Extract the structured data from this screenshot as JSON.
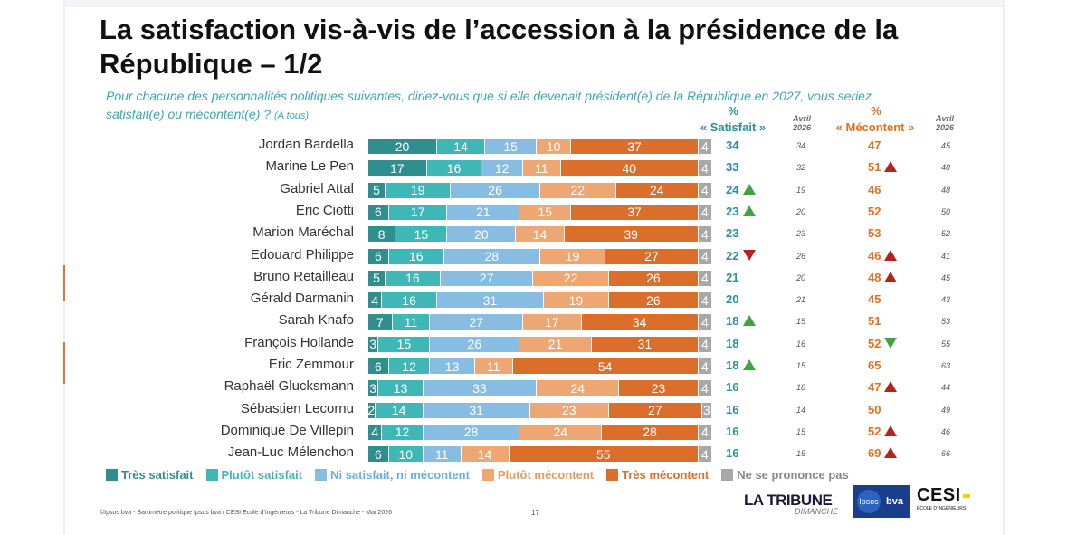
{
  "title": "La satisfaction vis-à-vis de l’accession à la présidence de la République – 1/2",
  "subtitle": "Pour chacune des personnalités politiques suivantes, diriez-vous que si elle devenait président(e) de la République en 2027, vous seriez satisfait(e) ou mécontent(e) ?",
  "subtitle_note": "(A tous)",
  "columns": {
    "pct_sat": "%",
    "satisfait": "« Satisfait »",
    "avril_sat": "Avril\n2026",
    "pct_mec": "%",
    "mecontent": "« Mécontent »",
    "avril_mec": "Avril\n2026"
  },
  "colors": {
    "tres_satisfait": "#2f8f8f",
    "plutot_satisfait": "#3fb7b7",
    "ni_ni": "#87bde3",
    "plutot_mecontent": "#eea672",
    "tres_mecontent": "#dc6e2c",
    "nspp": "#a8a8a8"
  },
  "chart_data": {
    "type": "bar",
    "orientation": "horizontal-stacked",
    "categories": [
      "Jordan Bardella",
      "Marine Le Pen",
      "Gabriel Attal",
      "Eric Ciotti",
      "Marion Maréchal",
      "Edouard Philippe",
      "Bruno Retailleau",
      "Gérald Darmanin",
      "Sarah Knafo",
      "François Hollande",
      "Eric Zemmour",
      "Raphaël Glucksmann",
      "Sébastien Lecornu",
      "Dominique De Villepin",
      "Jean-Luc Mélenchon"
    ],
    "series": [
      {
        "name": "Très satisfait",
        "values": [
          20,
          17,
          5,
          6,
          8,
          6,
          5,
          4,
          7,
          3,
          6,
          3,
          2,
          4,
          6
        ]
      },
      {
        "name": "Plutôt satisfait",
        "values": [
          14,
          16,
          19,
          17,
          15,
          16,
          16,
          16,
          11,
          15,
          12,
          13,
          14,
          12,
          10
        ]
      },
      {
        "name": "Ni satisfait, ni mécontent",
        "values": [
          15,
          12,
          26,
          21,
          20,
          28,
          27,
          31,
          27,
          26,
          13,
          33,
          31,
          28,
          11
        ]
      },
      {
        "name": "Plutôt mécontent",
        "values": [
          10,
          11,
          22,
          15,
          14,
          19,
          22,
          19,
          17,
          21,
          11,
          24,
          23,
          24,
          14
        ]
      },
      {
        "name": "Très mécontent",
        "values": [
          37,
          40,
          24,
          37,
          39,
          27,
          26,
          26,
          34,
          31,
          54,
          23,
          27,
          28,
          55
        ]
      },
      {
        "name": "Ne se prononce pas",
        "values": [
          4,
          4,
          4,
          4,
          4,
          4,
          4,
          4,
          4,
          4,
          4,
          4,
          3,
          4,
          4
        ]
      }
    ],
    "satisfait_total": [
      34,
      33,
      24,
      23,
      23,
      22,
      21,
      20,
      18,
      18,
      18,
      16,
      16,
      16,
      16
    ],
    "satisfait_avril": [
      34,
      32,
      19,
      20,
      23,
      26,
      20,
      21,
      15,
      16,
      15,
      18,
      14,
      15,
      15
    ],
    "satisfait_trend": [
      "",
      "",
      "up",
      "up",
      "",
      "down",
      "",
      "",
      "up",
      "",
      "up",
      "",
      "",
      "",
      ""
    ],
    "mecontent_total": [
      47,
      51,
      46,
      52,
      53,
      46,
      48,
      45,
      51,
      52,
      65,
      47,
      50,
      52,
      69
    ],
    "mecontent_avril": [
      45,
      48,
      48,
      50,
      52,
      41,
      45,
      43,
      53,
      55,
      63,
      44,
      49,
      46,
      66
    ],
    "mecontent_trend": [
      "",
      "up",
      "",
      "",
      "",
      "up",
      "up",
      "",
      "",
      "down",
      "",
      "up",
      "",
      "up",
      "up"
    ],
    "legend_position": "bottom"
  },
  "footer": "©Ipsos bva - Baromètre politique Ipsos bva / CESI Ecole d’ingénieurs - La Tribune Dimanche - Mai 2026",
  "page_number": "17",
  "logos": {
    "tribune_main": "LA TRIBUNE",
    "tribune_sub": "DIMANCHE",
    "ipsos": "Ipsos",
    "bva": "bva",
    "cesi": "CESI",
    "cesi_sub": "ÉCOLE D’INGÉNIEURS"
  }
}
